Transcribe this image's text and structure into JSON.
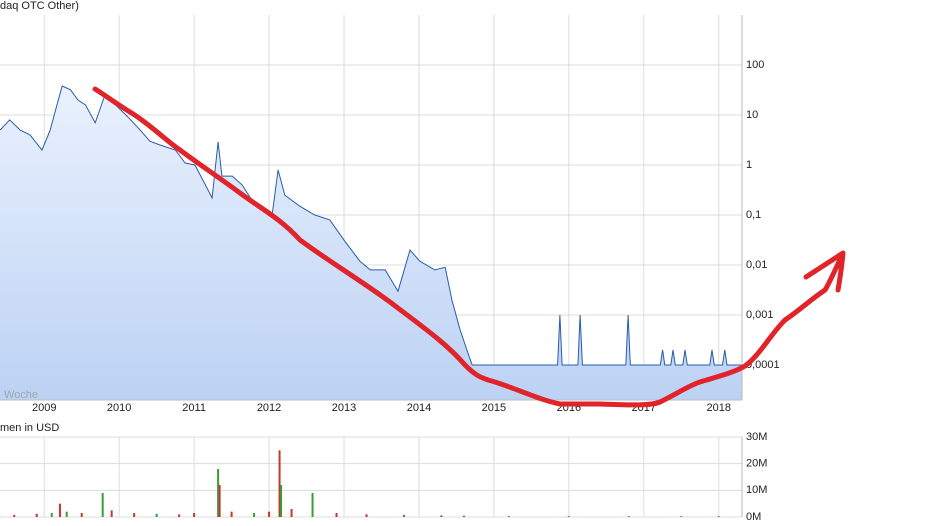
{
  "chart_data": [
    {
      "type": "line",
      "title": "daq OTC Other)",
      "annotation": "Woche",
      "log_y": true,
      "grid": true,
      "color": "#2a5caa",
      "fill_top": "#eaf1fd",
      "fill_bottom": "#bcd2f4",
      "xlim": [
        2008.41,
        2018.31
      ],
      "xticks": [
        2009,
        2010,
        2011,
        2012,
        2013,
        2014,
        2015,
        2016,
        2017,
        2018
      ],
      "ylim": [
        2e-05,
        1000
      ],
      "yticks": [
        100,
        10,
        1,
        {
          "value": 0.1,
          "label": "0,1"
        },
        {
          "value": 0.01,
          "label": "0,01"
        },
        {
          "value": 0.001,
          "label": "0,001"
        },
        {
          "value": 0.0001,
          "label": "0,0001"
        }
      ],
      "x": [
        2008.41,
        2008.54,
        2008.68,
        2008.81,
        2008.97,
        2009.08,
        2009.17,
        2009.24,
        2009.35,
        2009.45,
        2009.55,
        2009.68,
        2009.81,
        2009.95,
        2010.12,
        2010.28,
        2010.41,
        2010.55,
        2010.75,
        2010.88,
        2011.01,
        2011.15,
        2011.24,
        2011.32,
        2011.37,
        2011.51,
        2011.64,
        2011.77,
        2011.91,
        2012.04,
        2012.12,
        2012.21,
        2012.41,
        2012.61,
        2012.81,
        2013.01,
        2013.21,
        2013.35,
        2013.55,
        2013.72,
        2013.88,
        2014.01,
        2014.21,
        2014.35,
        2014.44,
        2014.55,
        2014.64,
        2014.71,
        2015.85,
        2015.88,
        2015.91,
        2016.12,
        2016.15,
        2016.18,
        2016.76,
        2016.79,
        2016.82,
        2017.22,
        2017.25,
        2017.28,
        2017.36,
        2017.39,
        2017.42,
        2017.52,
        2017.55,
        2017.58,
        2017.88,
        2017.91,
        2017.94,
        2018.05,
        2018.08,
        2018.11,
        2018.31
      ],
      "values": [
        5,
        8,
        5,
        4,
        2,
        5,
        16,
        38,
        32,
        20,
        16,
        7,
        25,
        16,
        9,
        5,
        3,
        2.5,
        2,
        1.1,
        1,
        0.4,
        0.22,
        2.9,
        0.6,
        0.6,
        0.4,
        0.2,
        0.13,
        0.1,
        0.8,
        0.25,
        0.15,
        0.1,
        0.08,
        0.03,
        0.012,
        0.008,
        0.008,
        0.003,
        0.02,
        0.012,
        0.008,
        0.009,
        0.002,
        0.0005,
        0.0002,
        0.0001,
        0.0001,
        0.001,
        0.0001,
        0.0001,
        0.001,
        0.0001,
        0.0001,
        0.001,
        0.0001,
        0.0001,
        0.0002,
        0.0001,
        0.0001,
        0.0002,
        0.0001,
        0.0001,
        0.0002,
        0.0001,
        0.0001,
        0.0002,
        0.0001,
        0.0001,
        0.0002,
        0.0001,
        0.0001
      ]
    },
    {
      "type": "bar",
      "title": "men in USD",
      "grid": true,
      "xlim": [
        2008.41,
        2018.31
      ],
      "ylim": [
        0,
        30000000
      ],
      "yticks": [
        {
          "value": 30000000,
          "label": "30M"
        },
        {
          "value": 20000000,
          "label": "20M"
        },
        {
          "value": 10000000,
          "label": "10M"
        },
        {
          "value": 0,
          "label": "0M"
        }
      ],
      "x": [
        2008.6,
        2008.9,
        2009.1,
        2009.21,
        2009.3,
        2009.5,
        2009.78,
        2009.9,
        2010.2,
        2010.5,
        2010.8,
        2011.0,
        2011.32,
        2011.34,
        2011.5,
        2011.8,
        2012.0,
        2012.14,
        2012.16,
        2012.3,
        2012.58,
        2012.9,
        2013.3,
        2013.8,
        2014.3,
        2014.6,
        2015.2,
        2016.0,
        2016.8,
        2017.5,
        2018.0
      ],
      "values": [
        800000,
        1200000,
        1500000,
        5000000,
        2000000,
        1500000,
        9000000,
        2500000,
        1500000,
        1200000,
        1000000,
        1500000,
        18000000,
        12000000,
        2000000,
        1500000,
        2000000,
        25000000,
        12000000,
        3000000,
        9000000,
        1500000,
        1000000,
        800000,
        600000,
        500000,
        300000,
        300000,
        300000,
        300000,
        300000
      ],
      "bar_colors": [
        "#c0392b",
        "#c0392b",
        "#3a9a3a",
        "#c0392b",
        "#3a9a3a",
        "#c0392b",
        "#3a9a3a",
        "#c0392b",
        "#c0392b",
        "#3a9a3a",
        "#c0392b",
        "#c0392b",
        "#3a9a3a",
        "#c0392b",
        "#c0392b",
        "#3a9a3a",
        "#c0392b",
        "#c0392b",
        "#3a9a3a",
        "#c0392b",
        "#3a9a3a",
        "#c0392b",
        "#c0392b",
        "#3a9a3a",
        "#c0392b",
        "#c0392b",
        "#c0392b",
        "#c0392b",
        "#c0392b",
        "#c0392b",
        "#c0392b"
      ]
    }
  ]
}
